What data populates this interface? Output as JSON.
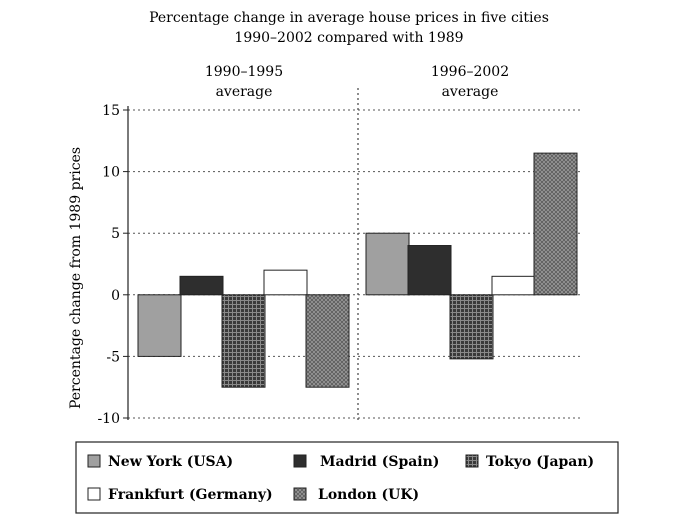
{
  "chart_data": {
    "type": "bar",
    "title_line1": "Percentage change in average house prices in five cities",
    "title_line2": "1990–2002 compared with 1989",
    "ylabel": "Percentage change from 1989 prices",
    "xlabel": "",
    "ylim": [
      -10,
      15
    ],
    "yticks": [
      15,
      10,
      5,
      0,
      -5,
      -10
    ],
    "ytick_labels": [
      "15",
      "10",
      "5",
      "0",
      "-5",
      "-10"
    ],
    "grid": "dashed horizontal",
    "categories": [
      {
        "line1": "1990–1995",
        "line2": "average"
      },
      {
        "line1": "1996–2002",
        "line2": "average"
      }
    ],
    "series": [
      {
        "name": "New York (USA)",
        "values": [
          -5,
          5
        ],
        "pattern": "light-grey"
      },
      {
        "name": "Madrid (Spain)",
        "values": [
          1.5,
          4
        ],
        "pattern": "dark"
      },
      {
        "name": "Tokyo (Japan)",
        "values": [
          -7.5,
          -5.2
        ],
        "pattern": "dark-grid"
      },
      {
        "name": "Frankfurt (Germany)",
        "values": [
          2,
          1.5
        ],
        "pattern": "white"
      },
      {
        "name": "London (UK)",
        "values": [
          -7.5,
          11.5
        ],
        "pattern": "light-grid"
      }
    ],
    "legend_position": "bottom"
  }
}
